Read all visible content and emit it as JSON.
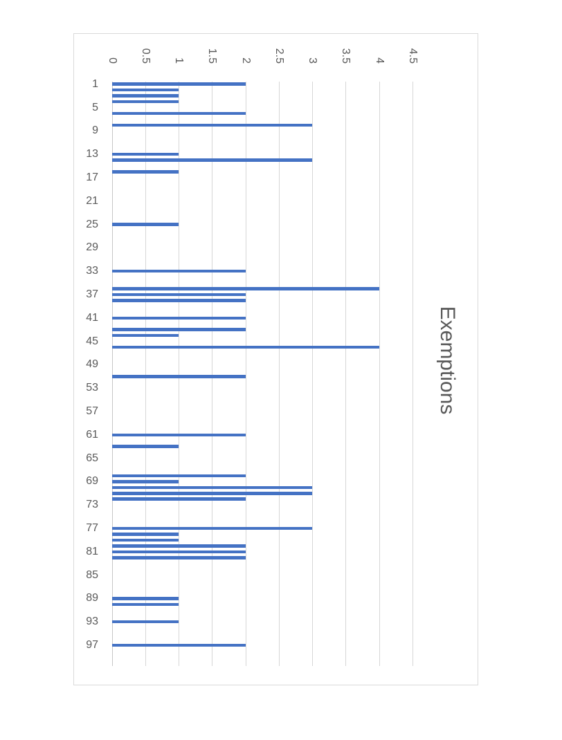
{
  "chart_data": {
    "type": "bar",
    "title": "Exemptions",
    "orientation": "horizontal-bars (column chart rotated 90deg clockwise, value axis on top, title at right)",
    "categories": [
      1,
      2,
      3,
      4,
      5,
      6,
      7,
      8,
      9,
      10,
      11,
      12,
      13,
      14,
      15,
      16,
      17,
      18,
      19,
      20,
      21,
      22,
      23,
      24,
      25,
      26,
      27,
      28,
      29,
      30,
      31,
      32,
      33,
      34,
      35,
      36,
      37,
      38,
      39,
      40,
      41,
      42,
      43,
      44,
      45,
      46,
      47,
      48,
      49,
      50,
      51,
      52,
      53,
      54,
      55,
      56,
      57,
      58,
      59,
      60,
      61,
      62,
      63,
      64,
      65,
      66,
      67,
      68,
      69,
      70,
      71,
      72,
      73,
      74,
      75,
      76,
      77,
      78,
      79,
      80,
      81,
      82,
      83,
      84,
      85,
      86,
      87,
      88,
      89,
      90,
      91,
      92,
      93,
      94,
      95,
      96,
      97,
      98,
      99,
      100
    ],
    "values": [
      2,
      1,
      1,
      1,
      0,
      2,
      0,
      3,
      0,
      0,
      0,
      0,
      1,
      3,
      0,
      1,
      0,
      0,
      0,
      0,
      0,
      0,
      0,
      0,
      1,
      0,
      0,
      0,
      0,
      0,
      0,
      0,
      2,
      0,
      0,
      4,
      2,
      2,
      0,
      0,
      2,
      0,
      2,
      1,
      0,
      4,
      0,
      0,
      0,
      0,
      2,
      0,
      0,
      0,
      0,
      0,
      0,
      0,
      0,
      0,
      2,
      0,
      1,
      0,
      0,
      0,
      0,
      2,
      1,
      3,
      3,
      2,
      0,
      0,
      0,
      0,
      3,
      1,
      1,
      2,
      2,
      2,
      0,
      0,
      0,
      0,
      0,
      0,
      1,
      1,
      0,
      0,
      1,
      0,
      0,
      0,
      2,
      0,
      0,
      0
    ],
    "value_axis": {
      "tick_labels": [
        "0",
        "0.5",
        "1",
        "1.5",
        "2",
        "2.5",
        "3",
        "3.5",
        "4",
        "4.5"
      ],
      "min": 0,
      "max": 4.5,
      "step": 0.5
    },
    "category_axis": {
      "tick_labels": [
        "1",
        "5",
        "9",
        "13",
        "17",
        "21",
        "25",
        "29",
        "33",
        "37",
        "41",
        "45",
        "49",
        "53",
        "57",
        "61",
        "65",
        "69",
        "73",
        "77",
        "81",
        "85",
        "89",
        "93",
        "97"
      ],
      "tick_interval": 4
    },
    "grid": true,
    "legend": "none",
    "colors": {
      "bar": "#4472C4",
      "axis_text": "#595959",
      "title_text": "#595959",
      "gridline": "#D6D6D6",
      "frame_border": "#D9D9D9",
      "background": "#FFFFFF"
    }
  }
}
